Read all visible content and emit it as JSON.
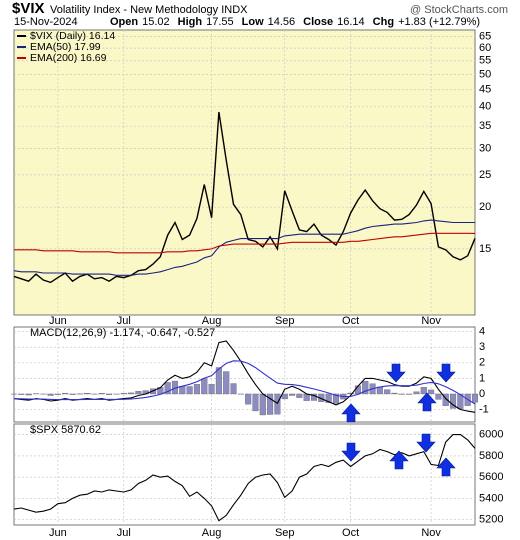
{
  "header": {
    "symbol": "$VIX",
    "name": "Volatility Index - New Methodology INDX",
    "watermark": "@ StockCharts.com",
    "date": "15-Nov-2024",
    "quote": [
      {
        "label": "Open",
        "value": "15.02"
      },
      {
        "label": "High",
        "value": "17.55"
      },
      {
        "label": "Low",
        "value": "14.56"
      },
      {
        "label": "Close",
        "value": "16.14"
      },
      {
        "label": "Chg",
        "value": "+1.83 (+12.79%)"
      }
    ]
  },
  "chart_data": [
    {
      "type": "line",
      "log_scale": true,
      "grid": true,
      "background": "#fbf8c8",
      "ylim": [
        9.5,
        68
      ],
      "yticks": [
        15,
        20,
        25,
        30,
        35,
        40,
        45,
        50,
        55,
        60,
        65
      ],
      "xticks": [
        {
          "value": 6,
          "label": "Jun"
        },
        {
          "value": 15,
          "label": "Jul"
        },
        {
          "value": 27,
          "label": "Aug"
        },
        {
          "value": 37,
          "label": "Sep"
        },
        {
          "value": 46,
          "label": "Oct"
        },
        {
          "value": 57,
          "label": "Nov"
        }
      ],
      "series": [
        {
          "name": "$VIX (Daily) 16.14",
          "color": "#000000",
          "values": [
            12.4,
            12.2,
            12.0,
            12.6,
            12.1,
            11.9,
            12.3,
            12.7,
            12.0,
            12.4,
            12.6,
            12.2,
            12.3,
            12.0,
            12.4,
            12.3,
            12.5,
            12.9,
            13.0,
            13.5,
            14.2,
            16.5,
            18.0,
            16.0,
            16.5,
            18.5,
            23.4,
            18.6,
            38.6,
            27.7,
            20.4,
            19.0,
            16.0,
            15.8,
            15.2,
            16.3,
            15.0,
            22.4,
            19.5,
            17.1,
            16.9,
            17.8,
            16.5,
            16.0,
            15.4,
            16.9,
            19.2,
            21.0,
            22.5,
            20.9,
            19.8,
            19.3,
            18.3,
            18.4,
            19.0,
            20.3,
            22.3,
            20.5,
            15.2,
            14.9,
            14.2,
            13.9,
            14.3,
            16.14
          ]
        },
        {
          "name": "EMA(50) 17.99",
          "color": "#1a237e",
          "values": [
            12.9,
            12.8,
            12.8,
            12.8,
            12.7,
            12.7,
            12.7,
            12.7,
            12.6,
            12.6,
            12.6,
            12.6,
            12.6,
            12.6,
            12.5,
            12.5,
            12.5,
            12.6,
            12.6,
            12.7,
            12.8,
            13.0,
            13.2,
            13.3,
            13.5,
            13.7,
            14.1,
            14.3,
            15.2,
            15.7,
            15.9,
            16.1,
            16.1,
            16.1,
            16.1,
            16.1,
            16.1,
            16.4,
            16.5,
            16.6,
            16.6,
            16.6,
            16.6,
            16.6,
            16.6,
            16.6,
            16.8,
            17.0,
            17.3,
            17.5,
            17.6,
            17.7,
            17.8,
            17.8,
            17.9,
            18.0,
            18.2,
            18.3,
            18.2,
            18.1,
            18.0,
            18.0,
            18.0,
            17.99
          ]
        },
        {
          "name": "EMA(200) 16.69",
          "color": "#c00000",
          "values": [
            14.9,
            14.9,
            14.9,
            14.9,
            14.8,
            14.8,
            14.8,
            14.8,
            14.8,
            14.7,
            14.7,
            14.7,
            14.7,
            14.7,
            14.6,
            14.6,
            14.6,
            14.6,
            14.6,
            14.6,
            14.6,
            14.7,
            14.7,
            14.7,
            14.8,
            14.8,
            14.9,
            15.0,
            15.3,
            15.4,
            15.5,
            15.5,
            15.5,
            15.5,
            15.5,
            15.5,
            15.5,
            15.6,
            15.7,
            15.7,
            15.7,
            15.7,
            15.7,
            15.7,
            15.7,
            15.7,
            15.8,
            15.8,
            15.9,
            16.0,
            16.1,
            16.2,
            16.3,
            16.3,
            16.4,
            16.5,
            16.6,
            16.7,
            16.7,
            16.7,
            16.7,
            16.7,
            16.7,
            16.69
          ]
        }
      ]
    },
    {
      "type": "macd",
      "title": "MACD(12,26,9) -1.174, -0.647, -0.527",
      "grid": true,
      "background": "#ffffff",
      "ylim": [
        -1.8,
        4.3
      ],
      "yticks": [
        -1,
        0,
        1,
        2,
        3,
        4
      ],
      "series": [
        {
          "kind": "histogram",
          "color": "#8c8cc0",
          "values": [
            0,
            -0.04,
            -0.07,
            0.02,
            -0.02,
            -0.1,
            -0.04,
            0.05,
            -0.04,
            0.01,
            0.05,
            0,
            0.04,
            -0.05,
            0,
            0.04,
            0.07,
            0.18,
            0.22,
            0.34,
            0.43,
            0.74,
            0.83,
            0.5,
            0.48,
            0.62,
            0.98,
            0.62,
            1.7,
            1.44,
            0.67,
            -0.02,
            -0.66,
            -1.09,
            -1.35,
            -1.32,
            -1.3,
            -0.32,
            -0.1,
            -0.24,
            -0.43,
            -0.42,
            -0.5,
            -0.56,
            -0.61,
            -0.33,
            0.06,
            0.53,
            0.82,
            0.66,
            0.45,
            0.28,
            0.06,
            -0.03,
            -0.03,
            0.14,
            0.43,
            0.26,
            -0.35,
            -0.76,
            -0.93,
            -0.95,
            -0.75,
            -0.527
          ]
        },
        {
          "kind": "line",
          "color": "#000000",
          "values": [
            -0.3,
            -0.35,
            -0.4,
            -0.3,
            -0.35,
            -0.45,
            -0.4,
            -0.3,
            -0.4,
            -0.35,
            -0.3,
            -0.35,
            -0.3,
            -0.4,
            -0.35,
            -0.3,
            -0.25,
            -0.1,
            0.0,
            0.2,
            0.4,
            0.9,
            1.2,
            1.0,
            1.1,
            1.4,
            2.0,
            1.8,
            3.3,
            3.4,
            2.8,
            2.1,
            1.3,
            0.6,
            0.0,
            -0.3,
            -0.6,
            0.3,
            0.5,
            0.3,
            0.0,
            -0.1,
            -0.3,
            -0.5,
            -0.7,
            -0.5,
            -0.1,
            0.5,
            1.0,
            1.0,
            0.9,
            0.8,
            0.6,
            0.5,
            0.5,
            0.7,
            1.1,
            1.0,
            0.3,
            -0.3,
            -0.7,
            -1.0,
            -1.1,
            -1.174
          ]
        },
        {
          "kind": "line",
          "color": "#3333cc",
          "values": [
            -0.3,
            -0.31,
            -0.33,
            -0.32,
            -0.33,
            -0.35,
            -0.36,
            -0.35,
            -0.36,
            -0.36,
            -0.35,
            -0.35,
            -0.34,
            -0.35,
            -0.35,
            -0.34,
            -0.32,
            -0.28,
            -0.22,
            -0.14,
            -0.03,
            0.16,
            0.37,
            0.5,
            0.62,
            0.78,
            1.02,
            1.18,
            1.6,
            1.96,
            2.13,
            2.12,
            1.96,
            1.69,
            1.35,
            1.02,
            0.7,
            0.62,
            0.6,
            0.54,
            0.43,
            0.32,
            0.2,
            0.06,
            -0.09,
            -0.17,
            -0.16,
            -0.03,
            0.18,
            0.34,
            0.45,
            0.52,
            0.54,
            0.53,
            0.53,
            0.56,
            0.67,
            0.74,
            0.65,
            0.46,
            0.23,
            -0.05,
            -0.35,
            -0.647
          ]
        }
      ]
    },
    {
      "type": "line",
      "title": "$SPX 5870.62",
      "grid": true,
      "background": "#ffffff",
      "ylim": [
        5150,
        6100
      ],
      "yticks": [
        5200,
        5400,
        5600,
        5800,
        6000
      ],
      "series": [
        {
          "kind": "line",
          "color": "#000000",
          "values": [
            5300,
            5310,
            5290,
            5270,
            5280,
            5300,
            5350,
            5360,
            5400,
            5430,
            5440,
            5470,
            5460,
            5480,
            5470,
            5460,
            5480,
            5540,
            5570,
            5620,
            5600,
            5610,
            5560,
            5520,
            5420,
            5460,
            5400,
            5330,
            5190,
            5240,
            5340,
            5430,
            5540,
            5600,
            5620,
            5630,
            5550,
            5410,
            5470,
            5600,
            5630,
            5700,
            5720,
            5700,
            5740,
            5760,
            5700,
            5750,
            5800,
            5820,
            5860,
            5840,
            5810,
            5830,
            5800,
            5820,
            5840,
            5720,
            5710,
            5930,
            6000,
            6000,
            5950,
            5870.62
          ]
        }
      ]
    }
  ]
}
